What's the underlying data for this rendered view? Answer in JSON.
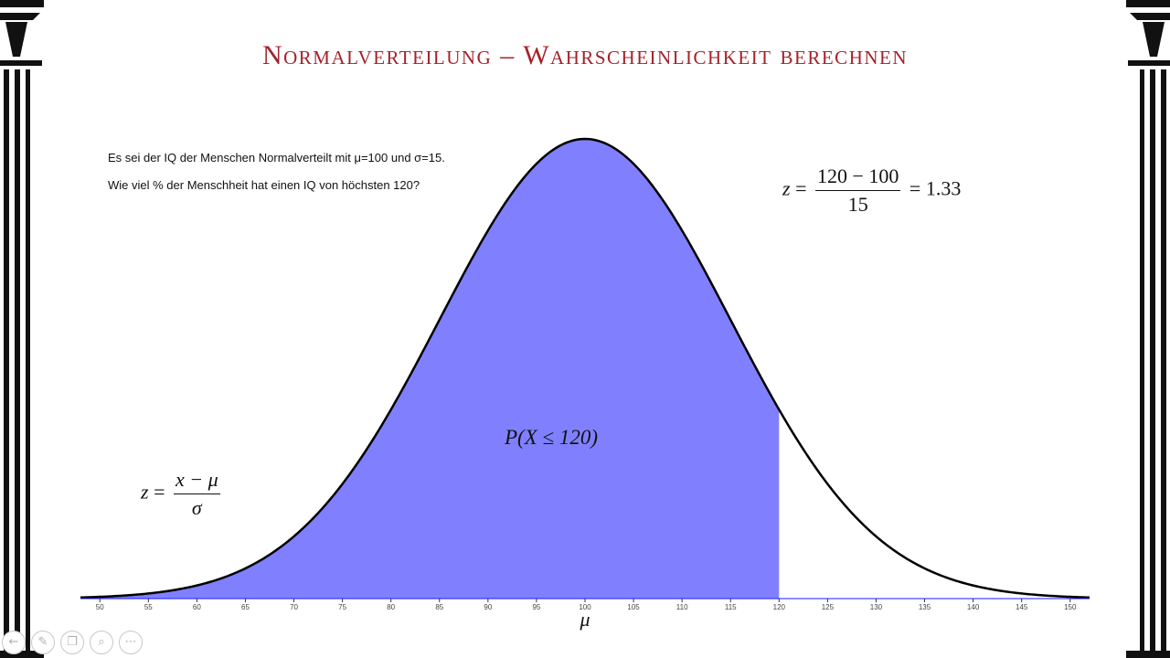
{
  "title": "Normalverteilung – Wahrscheinlichkeit berechnen",
  "problem": {
    "line1": "Es sei der IQ der Menschen Normalverteilt mit μ=100 und σ=15.",
    "line2": "Wie viel % der Menschheit hat einen IQ von höchsten 120?"
  },
  "formula_general": {
    "lhs": "z",
    "eq": "=",
    "numerator": "x − μ",
    "denominator": "σ"
  },
  "formula_specific": {
    "lhs": "z",
    "eq": "=",
    "numerator": "120 − 100",
    "denominator": "15",
    "result": "= 1.33"
  },
  "area_label": "P(X ≤ 120)",
  "colors": {
    "title": "#a4222a",
    "area_fill": "#8080ff",
    "curve": "#000000",
    "axis": "#1a1aff"
  },
  "chart_data": {
    "type": "area",
    "distribution": "normal",
    "mean": 100,
    "sd": 15,
    "shade_upper": 120,
    "xlim": [
      48,
      152
    ],
    "xticks": [
      50,
      55,
      60,
      65,
      70,
      75,
      80,
      85,
      90,
      95,
      100,
      105,
      110,
      115,
      120,
      125,
      130,
      135,
      140,
      145,
      150
    ],
    "xlabel": "μ"
  },
  "player_icons": [
    "arrow-left-icon",
    "pen-icon",
    "copy-icon",
    "zoom-icon",
    "more-icon"
  ]
}
